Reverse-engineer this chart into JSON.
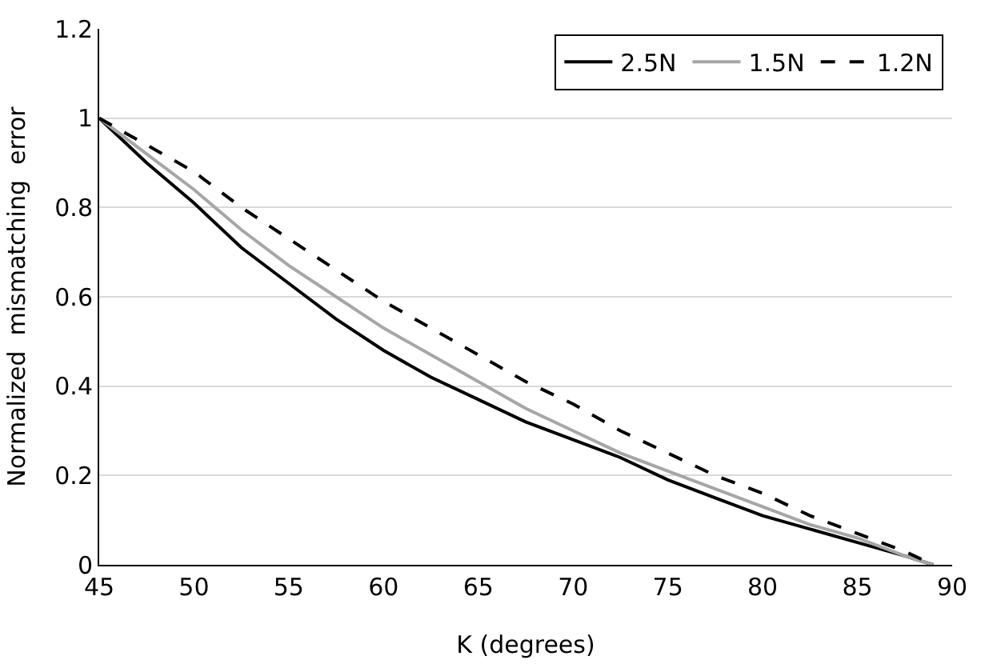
{
  "chart_data": {
    "type": "line",
    "xlabel": "K (degrees)",
    "ylabel": "Normalized  mismatching  error",
    "x": [
      45,
      47.5,
      50,
      52.5,
      55,
      57.5,
      60,
      62.5,
      65,
      67.5,
      70,
      72.5,
      75,
      77.5,
      80,
      82.5,
      85,
      87.5,
      89
    ],
    "series": [
      {
        "name": "2.5N",
        "color": "#000000",
        "line_style": "solid",
        "values": [
          1,
          0.9,
          0.81,
          0.71,
          0.63,
          0.55,
          0.48,
          0.42,
          0.37,
          0.32,
          0.28,
          0.24,
          0.19,
          0.15,
          0.11,
          0.08,
          0.05,
          0.02,
          0
        ]
      },
      {
        "name": "1.5N",
        "color": "#a6a6a6",
        "line_style": "solid",
        "values": [
          1,
          0.92,
          0.84,
          0.75,
          0.67,
          0.6,
          0.53,
          0.47,
          0.41,
          0.35,
          0.3,
          0.25,
          0.21,
          0.17,
          0.13,
          0.09,
          0.06,
          0.02,
          0
        ]
      },
      {
        "name": "1.2N",
        "color": "#000000",
        "line_style": "dashed",
        "values": [
          1,
          0.94,
          0.88,
          0.8,
          0.73,
          0.66,
          0.59,
          0.53,
          0.47,
          0.41,
          0.36,
          0.3,
          0.25,
          0.2,
          0.16,
          0.11,
          0.07,
          0.03,
          0
        ]
      }
    ],
    "xlim": [
      45,
      90
    ],
    "xticks": [
      45,
      50,
      55,
      60,
      65,
      70,
      75,
      80,
      85,
      90
    ],
    "ylim": [
      0,
      1.2
    ],
    "yticks": [
      0,
      0.2,
      0.4,
      0.6,
      0.8,
      1,
      1.2
    ],
    "grid": "y",
    "legend": "top right"
  }
}
